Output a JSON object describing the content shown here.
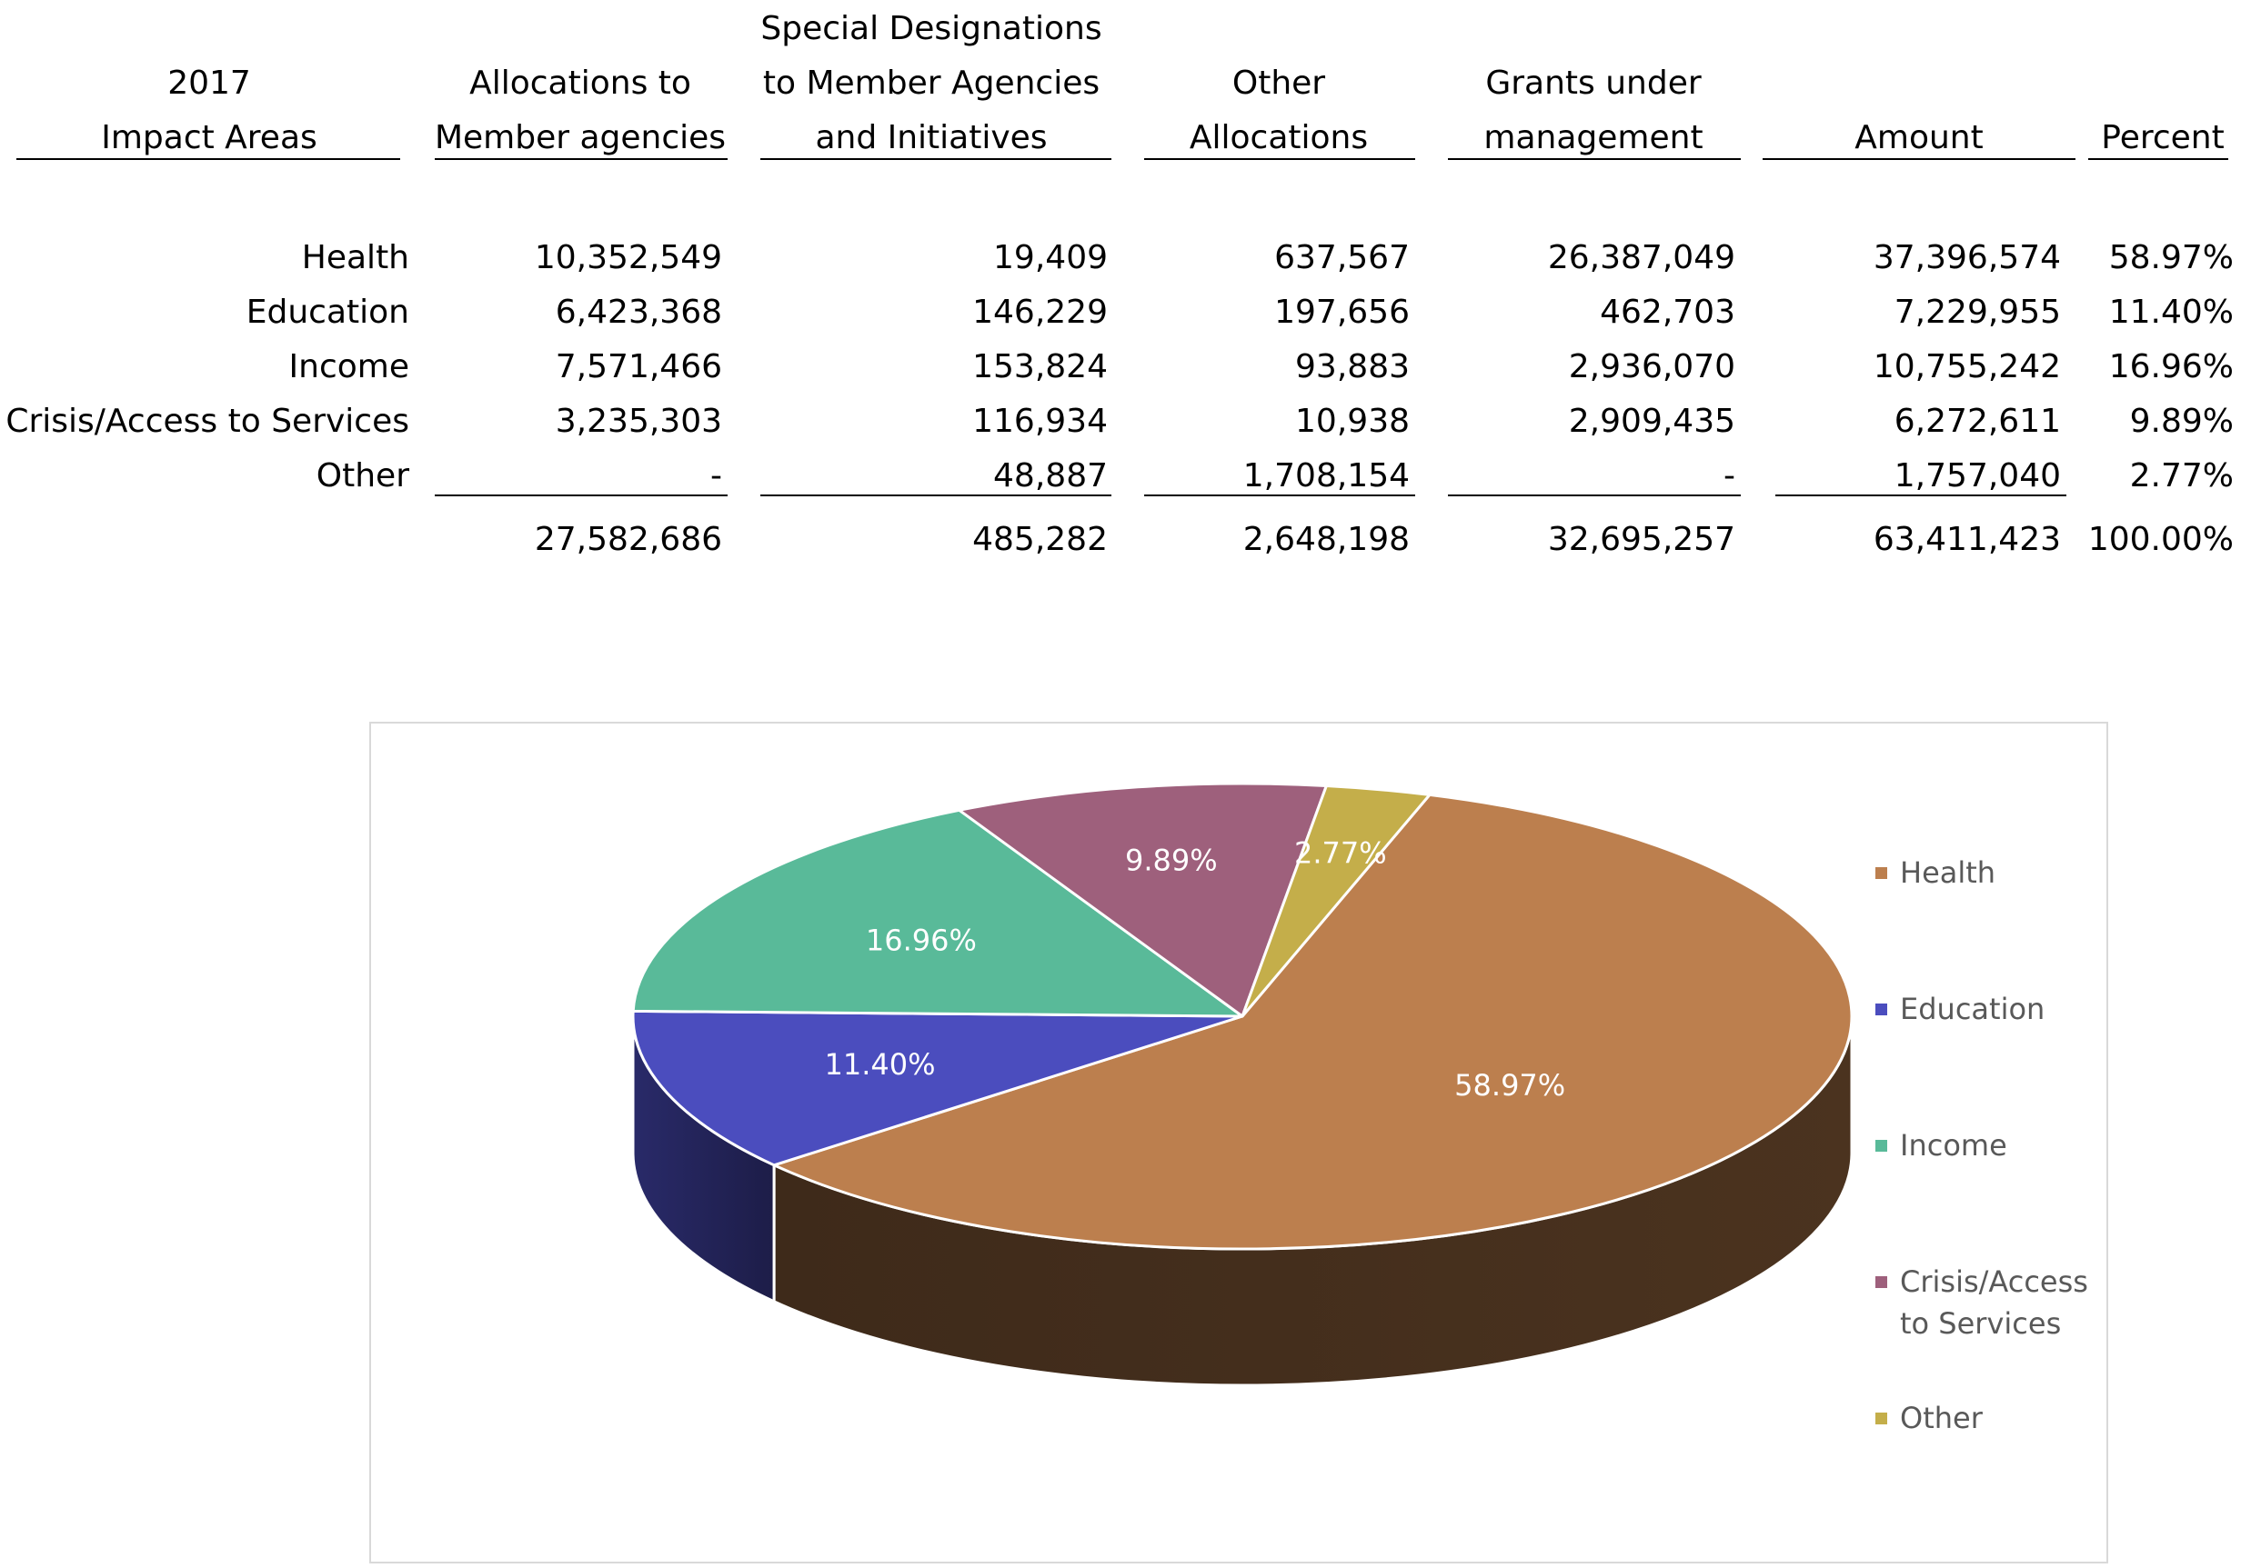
{
  "table": {
    "headers": [
      {
        "lines": [
          "",
          "2017",
          "Impact Areas"
        ]
      },
      {
        "lines": [
          "",
          "Allocations to",
          "Member agencies"
        ]
      },
      {
        "lines": [
          "Special Designations",
          "to Member Agencies",
          "and Initiatives"
        ]
      },
      {
        "lines": [
          "",
          "Other",
          "Allocations"
        ]
      },
      {
        "lines": [
          "",
          "Grants under",
          "management"
        ]
      },
      {
        "lines": [
          "",
          "",
          "Amount"
        ]
      },
      {
        "lines": [
          "",
          "",
          "Percent"
        ]
      }
    ],
    "rows": [
      {
        "area": "Health",
        "values": [
          "10,352,549",
          "19,409",
          "637,567",
          "26,387,049",
          "37,396,574",
          "58.97%"
        ]
      },
      {
        "area": "Education",
        "values": [
          "6,423,368",
          "146,229",
          "197,656",
          "462,703",
          "7,229,955",
          "11.40%"
        ]
      },
      {
        "area": "Income",
        "values": [
          "7,571,466",
          "153,824",
          "93,883",
          "2,936,070",
          "10,755,242",
          "16.96%"
        ]
      },
      {
        "area": "Crisis/Access to Services",
        "values": [
          "3,235,303",
          "116,934",
          "10,938",
          "2,909,435",
          "6,272,611",
          "9.89%"
        ]
      },
      {
        "area": "Other",
        "values": [
          "-",
          "48,887",
          "1,708,154",
          "-",
          "1,757,040",
          "2.77%"
        ]
      }
    ],
    "totals": [
      "27,582,686",
      "485,282",
      "2,648,198",
      "32,695,257",
      "63,411,423",
      "100.00%"
    ]
  },
  "chart_data": {
    "type": "pie",
    "categories": [
      "Health",
      "Education",
      "Income",
      "Crisis/Access to Services",
      "Other"
    ],
    "values": [
      58.97,
      11.4,
      16.96,
      9.89,
      2.77
    ],
    "data_labels": [
      "58.97%",
      "11.40%",
      "16.96%",
      "9.89%",
      "2.77%"
    ],
    "legend_labels": [
      "Health",
      "Education",
      "Income",
      "Crisis/Access\nto Services",
      "Other"
    ],
    "colors": [
      "#BC7F4E",
      "#4B4DBE",
      "#59BA99",
      "#9E607C",
      "#C4AE4A"
    ],
    "legend": "right",
    "three_d": true
  }
}
